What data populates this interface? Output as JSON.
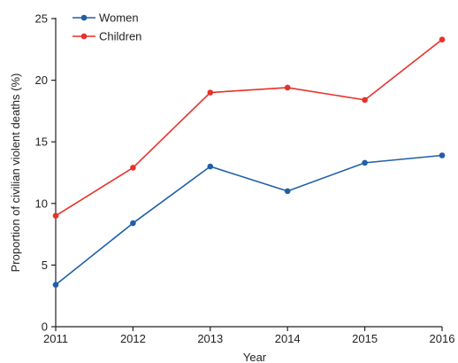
{
  "chart_data": {
    "type": "line",
    "title": "",
    "xlabel": "Year",
    "ylabel": "Proportion of civilian violent deaths (%)",
    "x": [
      2011,
      2012,
      2013,
      2014,
      2015,
      2016
    ],
    "xticks": [
      "2011",
      "2012",
      "2013",
      "2014",
      "2015",
      "2016"
    ],
    "ylim": [
      0,
      25
    ],
    "yticks": [
      0,
      5,
      10,
      15,
      20,
      25
    ],
    "grid": false,
    "legend_position": "top-left",
    "series": [
      {
        "name": "Women",
        "color": "#1f5fa6",
        "values": [
          3.4,
          8.4,
          13.0,
          11.0,
          13.3,
          13.9
        ]
      },
      {
        "name": "Children",
        "color": "#e8312a",
        "values": [
          9.0,
          12.9,
          19.0,
          19.4,
          18.4,
          23.3
        ]
      }
    ]
  }
}
